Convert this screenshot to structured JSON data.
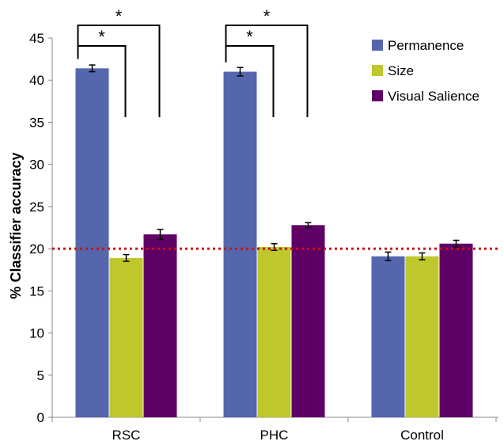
{
  "chart_data": {
    "type": "bar",
    "ylabel": "% Classifier accuracy",
    "xlabel": "",
    "ylim": [
      0,
      45
    ],
    "yticks": [
      0,
      5,
      10,
      15,
      20,
      25,
      30,
      35,
      40,
      45
    ],
    "grid": false,
    "legend_position": "top-right",
    "categories": [
      "RSC",
      "PHC",
      "Control"
    ],
    "series": [
      {
        "name": "Permanence",
        "color": "#5566ad",
        "values": [
          41.4,
          41.0,
          19.1
        ],
        "errors": [
          0.4,
          0.5,
          0.5
        ]
      },
      {
        "name": "Size",
        "color": "#bec72b",
        "values": [
          18.9,
          20.2,
          19.1
        ],
        "errors": [
          0.4,
          0.4,
          0.4
        ]
      },
      {
        "name": "Visual Salience",
        "color": "#5e0066",
        "values": [
          21.7,
          22.8,
          20.6
        ],
        "errors": [
          0.6,
          0.3,
          0.4
        ]
      }
    ],
    "reference_line": {
      "value": 20,
      "color": "#cc1111",
      "style": "dotted"
    },
    "significance": [
      {
        "category": "RSC",
        "from": "Permanence",
        "to": "Size",
        "label": "*"
      },
      {
        "category": "RSC",
        "from": "Permanence",
        "to": "Visual Salience",
        "label": "*"
      },
      {
        "category": "PHC",
        "from": "Permanence",
        "to": "Size",
        "label": "*"
      },
      {
        "category": "PHC",
        "from": "Permanence",
        "to": "Visual Salience",
        "label": "*"
      }
    ]
  }
}
